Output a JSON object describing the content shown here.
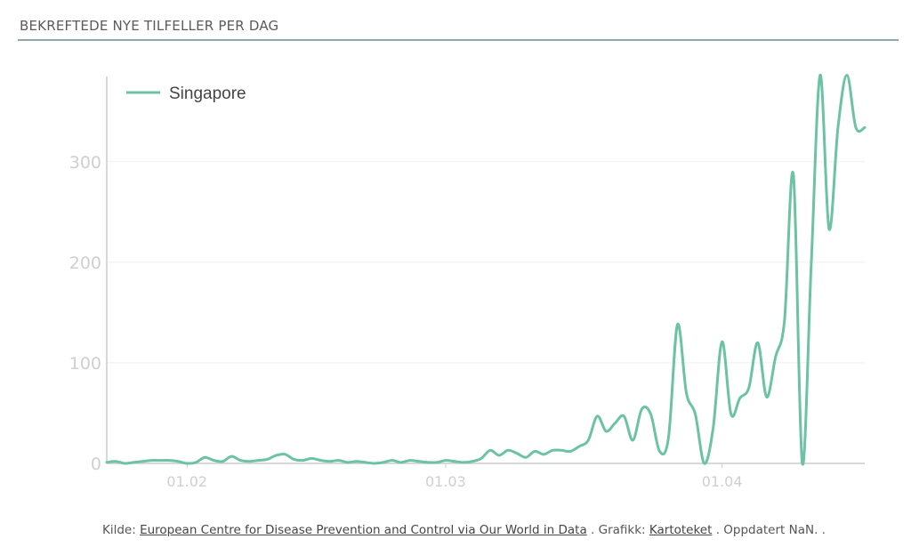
{
  "header": {
    "title": "BEKREFTEDE NYE TILFELLER PER DAG"
  },
  "colors": {
    "series": "#6cc3a3",
    "axis": "#cccccc",
    "grid": "#efefef",
    "tick_text": "#cfcfcf",
    "header_rule": "#8fa8ab"
  },
  "chart_data": {
    "type": "line",
    "title": "",
    "xlabel": "",
    "ylabel": "",
    "x_ticks": [
      {
        "label": "01.02",
        "date": "2020-02-01"
      },
      {
        "label": "01.03",
        "date": "2020-03-01"
      },
      {
        "label": "01.04",
        "date": "2020-04-01"
      }
    ],
    "y_ticks": [
      0,
      100,
      200,
      300
    ],
    "ylim": [
      0,
      390
    ],
    "xlim": [
      "2020-01-23",
      "2020-04-17"
    ],
    "grid": true,
    "legend": {
      "position": "top-left"
    },
    "series": [
      {
        "name": "Singapore",
        "x": [
          "2020-01-23",
          "2020-01-24",
          "2020-01-25",
          "2020-01-26",
          "2020-01-27",
          "2020-01-28",
          "2020-01-29",
          "2020-01-30",
          "2020-01-31",
          "2020-02-01",
          "2020-02-02",
          "2020-02-03",
          "2020-02-04",
          "2020-02-05",
          "2020-02-06",
          "2020-02-07",
          "2020-02-08",
          "2020-02-09",
          "2020-02-10",
          "2020-02-11",
          "2020-02-12",
          "2020-02-13",
          "2020-02-14",
          "2020-02-15",
          "2020-02-16",
          "2020-02-17",
          "2020-02-18",
          "2020-02-19",
          "2020-02-20",
          "2020-02-21",
          "2020-02-22",
          "2020-02-23",
          "2020-02-24",
          "2020-02-25",
          "2020-02-26",
          "2020-02-27",
          "2020-02-28",
          "2020-02-29",
          "2020-03-01",
          "2020-03-02",
          "2020-03-03",
          "2020-03-04",
          "2020-03-05",
          "2020-03-06",
          "2020-03-07",
          "2020-03-08",
          "2020-03-09",
          "2020-03-10",
          "2020-03-11",
          "2020-03-12",
          "2020-03-13",
          "2020-03-14",
          "2020-03-15",
          "2020-03-16",
          "2020-03-17",
          "2020-03-18",
          "2020-03-19",
          "2020-03-20",
          "2020-03-21",
          "2020-03-22",
          "2020-03-23",
          "2020-03-24",
          "2020-03-25",
          "2020-03-26",
          "2020-03-27",
          "2020-03-28",
          "2020-03-29",
          "2020-03-30",
          "2020-03-31",
          "2020-04-01",
          "2020-04-02",
          "2020-04-03",
          "2020-04-04",
          "2020-04-05",
          "2020-04-06",
          "2020-04-07",
          "2020-04-08",
          "2020-04-09",
          "2020-04-10",
          "2020-04-11",
          "2020-04-12",
          "2020-04-13",
          "2020-04-14",
          "2020-04-15",
          "2020-04-16",
          "2020-04-17"
        ],
        "y": [
          1,
          2,
          0,
          1,
          2,
          3,
          3,
          3,
          2,
          0,
          1,
          6,
          3,
          2,
          7,
          3,
          2,
          3,
          4,
          8,
          9,
          4,
          3,
          5,
          3,
          2,
          3,
          1,
          2,
          1,
          0,
          1,
          3,
          1,
          3,
          2,
          1,
          1,
          3,
          2,
          1,
          2,
          5,
          13,
          8,
          13,
          10,
          6,
          12,
          9,
          13,
          13,
          12,
          17,
          23,
          47,
          32,
          40,
          47,
          23,
          54,
          49,
          12,
          26,
          138,
          70,
          49,
          0,
          35,
          121,
          49,
          65,
          75,
          120,
          66,
          106,
          142,
          287,
          0,
          198,
          386,
          233,
          334,
          386,
          334,
          334
        ]
      }
    ]
  },
  "footer": {
    "prefix": "Kilde: ",
    "source_link": "European Centre for Disease Prevention and Control via Our World in Data",
    "sep1": " . Grafikk: ",
    "graphic_link": "Kartoteket",
    "sep2": " . Oppdatert NaN. ."
  }
}
